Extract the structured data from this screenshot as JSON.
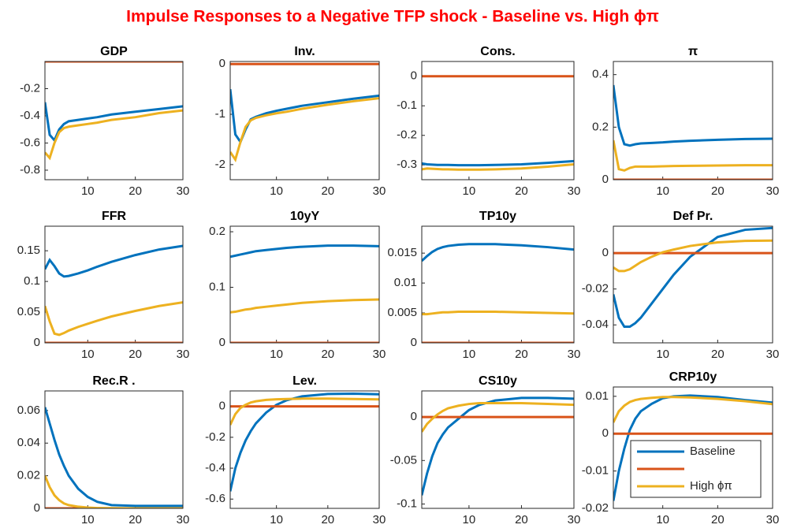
{
  "title": "Impulse Responses to a Negative TFP shock - Baseline vs. High ϕπ",
  "chart_data": [
    {
      "type": "line",
      "title": "GDP",
      "x": [
        1,
        2,
        3,
        4,
        5,
        6,
        8,
        10,
        12,
        15,
        20,
        25,
        30
      ],
      "xlim": [
        1,
        30
      ],
      "xticks": [
        10,
        20,
        30
      ],
      "ylim": [
        -0.87,
        0
      ],
      "yticks": [
        -0.8,
        -0.6,
        -0.4,
        -0.2
      ],
      "series": [
        {
          "color": "#0072bd",
          "values": [
            -0.3,
            -0.54,
            -0.58,
            -0.5,
            -0.46,
            -0.44,
            -0.43,
            -0.42,
            -0.41,
            -0.39,
            -0.37,
            -0.35,
            -0.33
          ]
        },
        {
          "color": "#d95319",
          "values": [
            0,
            0,
            0,
            0,
            0,
            0,
            0,
            0,
            0,
            0,
            0,
            0,
            0
          ]
        },
        {
          "color": "#edb120",
          "values": [
            -0.67,
            -0.71,
            -0.6,
            -0.52,
            -0.49,
            -0.48,
            -0.47,
            -0.46,
            -0.45,
            -0.43,
            -0.41,
            -0.38,
            -0.36
          ]
        }
      ]
    },
    {
      "type": "line",
      "title": "Inv.",
      "x": [
        1,
        2,
        3,
        4,
        5,
        6,
        8,
        10,
        12,
        15,
        20,
        25,
        30
      ],
      "xlim": [
        1,
        30
      ],
      "xticks": [
        10,
        20,
        30
      ],
      "ylim": [
        -2.3,
        0.05
      ],
      "yticks": [
        -2,
        -1,
        0
      ],
      "series": [
        {
          "color": "#0072bd",
          "values": [
            -0.5,
            -1.4,
            -1.55,
            -1.3,
            -1.1,
            -1.05,
            -0.98,
            -0.93,
            -0.89,
            -0.83,
            -0.76,
            -0.69,
            -0.63
          ]
        },
        {
          "color": "#d95319",
          "values": [
            0,
            0,
            0,
            0,
            0,
            0,
            0,
            0,
            0,
            0,
            0,
            0,
            0
          ]
        },
        {
          "color": "#edb120",
          "values": [
            -1.75,
            -1.9,
            -1.55,
            -1.25,
            -1.12,
            -1.07,
            -1.02,
            -0.98,
            -0.95,
            -0.89,
            -0.81,
            -0.74,
            -0.68
          ]
        }
      ]
    },
    {
      "type": "line",
      "title": "Cons.",
      "x": [
        1,
        2,
        3,
        4,
        5,
        6,
        8,
        10,
        12,
        15,
        20,
        25,
        30
      ],
      "xlim": [
        1,
        30
      ],
      "xticks": [
        10,
        20,
        30
      ],
      "ylim": [
        -0.35,
        0.05
      ],
      "yticks": [
        -0.3,
        -0.2,
        -0.1,
        0
      ],
      "series": [
        {
          "color": "#0072bd",
          "values": [
            -0.295,
            -0.298,
            -0.299,
            -0.3,
            -0.3,
            -0.3,
            -0.301,
            -0.301,
            -0.301,
            -0.3,
            -0.298,
            -0.293,
            -0.287
          ]
        },
        {
          "color": "#d95319",
          "values": [
            0,
            0,
            0,
            0,
            0,
            0,
            0,
            0,
            0,
            0,
            0,
            0,
            0
          ]
        },
        {
          "color": "#edb120",
          "values": [
            -0.315,
            -0.312,
            -0.313,
            -0.314,
            -0.315,
            -0.315,
            -0.316,
            -0.316,
            -0.316,
            -0.315,
            -0.312,
            -0.306,
            -0.298
          ]
        }
      ]
    },
    {
      "type": "line",
      "title": "π",
      "x": [
        1,
        2,
        3,
        4,
        5,
        6,
        8,
        10,
        12,
        15,
        20,
        25,
        30
      ],
      "xlim": [
        1,
        30
      ],
      "xticks": [
        10,
        20,
        30
      ],
      "ylim": [
        0,
        0.45
      ],
      "yticks": [
        0,
        0.2,
        0.4
      ],
      "series": [
        {
          "color": "#0072bd",
          "values": [
            0.36,
            0.2,
            0.135,
            0.13,
            0.135,
            0.138,
            0.14,
            0.142,
            0.145,
            0.148,
            0.152,
            0.155,
            0.156
          ]
        },
        {
          "color": "#d95319",
          "values": [
            0,
            0,
            0,
            0,
            0,
            0,
            0,
            0,
            0,
            0,
            0,
            0,
            0
          ]
        },
        {
          "color": "#edb120",
          "values": [
            0.15,
            0.04,
            0.035,
            0.045,
            0.05,
            0.05,
            0.05,
            0.051,
            0.052,
            0.053,
            0.054,
            0.055,
            0.055
          ]
        }
      ]
    },
    {
      "type": "line",
      "title": "FFR",
      "x": [
        1,
        2,
        3,
        4,
        5,
        6,
        8,
        10,
        12,
        15,
        20,
        25,
        30
      ],
      "xlim": [
        1,
        30
      ],
      "xticks": [
        10,
        20,
        30
      ],
      "ylim": [
        0,
        0.19
      ],
      "yticks": [
        0,
        0.05,
        0.1,
        0.15
      ],
      "series": [
        {
          "color": "#0072bd",
          "values": [
            0.12,
            0.135,
            0.125,
            0.113,
            0.108,
            0.109,
            0.113,
            0.118,
            0.124,
            0.132,
            0.143,
            0.152,
            0.158
          ]
        },
        {
          "color": "#d95319",
          "values": [
            0,
            0,
            0,
            0,
            0,
            0,
            0,
            0,
            0,
            0,
            0,
            0,
            0
          ]
        },
        {
          "color": "#edb120",
          "values": [
            0.06,
            0.035,
            0.015,
            0.013,
            0.016,
            0.02,
            0.026,
            0.031,
            0.036,
            0.043,
            0.052,
            0.06,
            0.066
          ]
        }
      ]
    },
    {
      "type": "line",
      "title": "10yY",
      "x": [
        1,
        2,
        3,
        4,
        5,
        6,
        8,
        10,
        12,
        15,
        20,
        25,
        30
      ],
      "xlim": [
        1,
        30
      ],
      "xticks": [
        10,
        20,
        30
      ],
      "ylim": [
        0,
        0.21
      ],
      "yticks": [
        0,
        0.1,
        0.2
      ],
      "series": [
        {
          "color": "#0072bd",
          "values": [
            0.155,
            0.157,
            0.159,
            0.161,
            0.163,
            0.165,
            0.167,
            0.169,
            0.171,
            0.173,
            0.175,
            0.175,
            0.174
          ]
        },
        {
          "color": "#d95319",
          "values": [
            0,
            0,
            0,
            0,
            0,
            0,
            0,
            0,
            0,
            0,
            0,
            0,
            0
          ]
        },
        {
          "color": "#edb120",
          "values": [
            0.055,
            0.056,
            0.058,
            0.06,
            0.061,
            0.063,
            0.065,
            0.067,
            0.069,
            0.072,
            0.075,
            0.077,
            0.078
          ]
        }
      ]
    },
    {
      "type": "line",
      "title": "TP10y",
      "x": [
        1,
        2,
        3,
        4,
        5,
        6,
        8,
        10,
        12,
        15,
        20,
        25,
        30
      ],
      "xlim": [
        1,
        30
      ],
      "xticks": [
        10,
        20,
        30
      ],
      "ylim": [
        0,
        0.0195
      ],
      "yticks": [
        0,
        0.005,
        0.01,
        0.015
      ],
      "series": [
        {
          "color": "#0072bd",
          "values": [
            0.0137,
            0.0145,
            0.0152,
            0.0157,
            0.016,
            0.0162,
            0.0164,
            0.0165,
            0.0165,
            0.0165,
            0.0163,
            0.016,
            0.0156
          ]
        },
        {
          "color": "#d95319",
          "values": [
            0,
            0,
            0,
            0,
            0,
            0,
            0,
            0,
            0,
            0,
            0,
            0,
            0
          ]
        },
        {
          "color": "#edb120",
          "values": [
            0.0048,
            0.0048,
            0.0049,
            0.005,
            0.0051,
            0.0051,
            0.0052,
            0.0052,
            0.0052,
            0.0052,
            0.0051,
            0.005,
            0.0049
          ]
        }
      ]
    },
    {
      "type": "line",
      "title": "Def Pr.",
      "x": [
        1,
        2,
        3,
        4,
        5,
        6,
        8,
        10,
        12,
        15,
        20,
        25,
        30
      ],
      "xlim": [
        1,
        30
      ],
      "xticks": [
        10,
        20,
        30
      ],
      "ylim": [
        -0.05,
        0.015
      ],
      "yticks": [
        -0.04,
        -0.02,
        0
      ],
      "series": [
        {
          "color": "#0072bd",
          "values": [
            -0.023,
            -0.036,
            -0.041,
            -0.041,
            -0.039,
            -0.036,
            -0.028,
            -0.02,
            -0.012,
            -0.002,
            0.009,
            0.013,
            0.014
          ]
        },
        {
          "color": "#d95319",
          "values": [
            0,
            0,
            0,
            0,
            0,
            0,
            0,
            0,
            0,
            0,
            0,
            0,
            0
          ]
        },
        {
          "color": "#edb120",
          "values": [
            -0.008,
            -0.01,
            -0.01,
            -0.009,
            -0.007,
            -0.005,
            -0.002,
            0.0005,
            0.002,
            0.004,
            0.006,
            0.0068,
            0.007
          ]
        }
      ]
    },
    {
      "type": "line",
      "title": "Rec.R .",
      "x": [
        1,
        2,
        3,
        4,
        5,
        6,
        8,
        10,
        12,
        15,
        20,
        25,
        30
      ],
      "xlim": [
        1,
        30
      ],
      "xticks": [
        10,
        20,
        30
      ],
      "ylim": [
        0,
        0.072
      ],
      "yticks": [
        0,
        0.02,
        0.04,
        0.06
      ],
      "series": [
        {
          "color": "#0072bd",
          "values": [
            0.062,
            0.052,
            0.042,
            0.033,
            0.026,
            0.02,
            0.012,
            0.007,
            0.004,
            0.002,
            0.0015,
            0.0015,
            0.0015
          ]
        },
        {
          "color": "#d95319",
          "values": [
            0,
            0,
            0,
            0,
            0,
            0,
            0,
            0,
            0,
            0,
            0,
            0,
            0
          ]
        },
        {
          "color": "#edb120",
          "values": [
            0.02,
            0.013,
            0.008,
            0.005,
            0.003,
            0.002,
            0.001,
            0.0005,
            0.0002,
            0.0001,
            0,
            0,
            0
          ]
        }
      ]
    },
    {
      "type": "line",
      "title": "Lev.",
      "x": [
        1,
        2,
        3,
        4,
        5,
        6,
        8,
        10,
        12,
        15,
        20,
        25,
        30
      ],
      "xlim": [
        1,
        30
      ],
      "xticks": [
        10,
        20,
        30
      ],
      "ylim": [
        -0.66,
        0.1
      ],
      "yticks": [
        -0.6,
        -0.4,
        -0.2,
        0
      ],
      "series": [
        {
          "color": "#0072bd",
          "values": [
            -0.55,
            -0.4,
            -0.3,
            -0.22,
            -0.16,
            -0.11,
            -0.04,
            0.01,
            0.04,
            0.065,
            0.08,
            0.082,
            0.078
          ]
        },
        {
          "color": "#d95319",
          "values": [
            0,
            0,
            0,
            0,
            0,
            0,
            0,
            0,
            0,
            0,
            0,
            0,
            0
          ]
        },
        {
          "color": "#edb120",
          "values": [
            -0.12,
            -0.05,
            -0.01,
            0.01,
            0.025,
            0.033,
            0.042,
            0.046,
            0.048,
            0.05,
            0.05,
            0.048,
            0.045
          ]
        }
      ]
    },
    {
      "type": "line",
      "title": "CS10y",
      "x": [
        1,
        2,
        3,
        4,
        5,
        6,
        8,
        10,
        12,
        15,
        20,
        25,
        30
      ],
      "xlim": [
        1,
        30
      ],
      "xticks": [
        10,
        20,
        30
      ],
      "ylim": [
        -0.105,
        0.03
      ],
      "yticks": [
        -0.1,
        -0.05,
        0
      ],
      "series": [
        {
          "color": "#0072bd",
          "values": [
            -0.09,
            -0.065,
            -0.045,
            -0.03,
            -0.02,
            -0.012,
            -0.002,
            0.008,
            0.014,
            0.019,
            0.022,
            0.022,
            0.021
          ]
        },
        {
          "color": "#d95319",
          "values": [
            0,
            0,
            0,
            0,
            0,
            0,
            0,
            0,
            0,
            0,
            0,
            0,
            0
          ]
        },
        {
          "color": "#edb120",
          "values": [
            -0.017,
            -0.008,
            -0.002,
            0.003,
            0.007,
            0.01,
            0.013,
            0.015,
            0.016,
            0.016,
            0.016,
            0.015,
            0.014
          ]
        }
      ]
    },
    {
      "type": "line",
      "title": "CRP10y",
      "x": [
        1,
        2,
        3,
        4,
        5,
        6,
        8,
        10,
        12,
        15,
        20,
        25,
        30
      ],
      "xlim": [
        1,
        30
      ],
      "xticks": [
        10,
        20,
        30
      ],
      "ylim": [
        -0.02,
        0.0125
      ],
      "yticks": [
        -0.02,
        -0.01,
        0,
        0.01
      ],
      "legend": "lower right",
      "series": [
        {
          "name": "Baseline",
          "color": "#0072bd",
          "values": [
            -0.018,
            -0.01,
            -0.004,
            0.001,
            0.004,
            0.006,
            0.008,
            0.0095,
            0.01,
            0.0102,
            0.0098,
            0.009,
            0.0083
          ]
        },
        {
          "name": null,
          "color": "#d95319",
          "values": [
            0,
            0,
            0,
            0,
            0,
            0,
            0,
            0,
            0,
            0,
            0,
            0,
            0
          ]
        },
        {
          "name": "High ϕπ",
          "color": "#edb120",
          "values": [
            0.003,
            0.006,
            0.0075,
            0.0085,
            0.009,
            0.0093,
            0.0096,
            0.0098,
            0.0098,
            0.0097,
            0.0093,
            0.0087,
            0.0079
          ]
        }
      ]
    }
  ]
}
